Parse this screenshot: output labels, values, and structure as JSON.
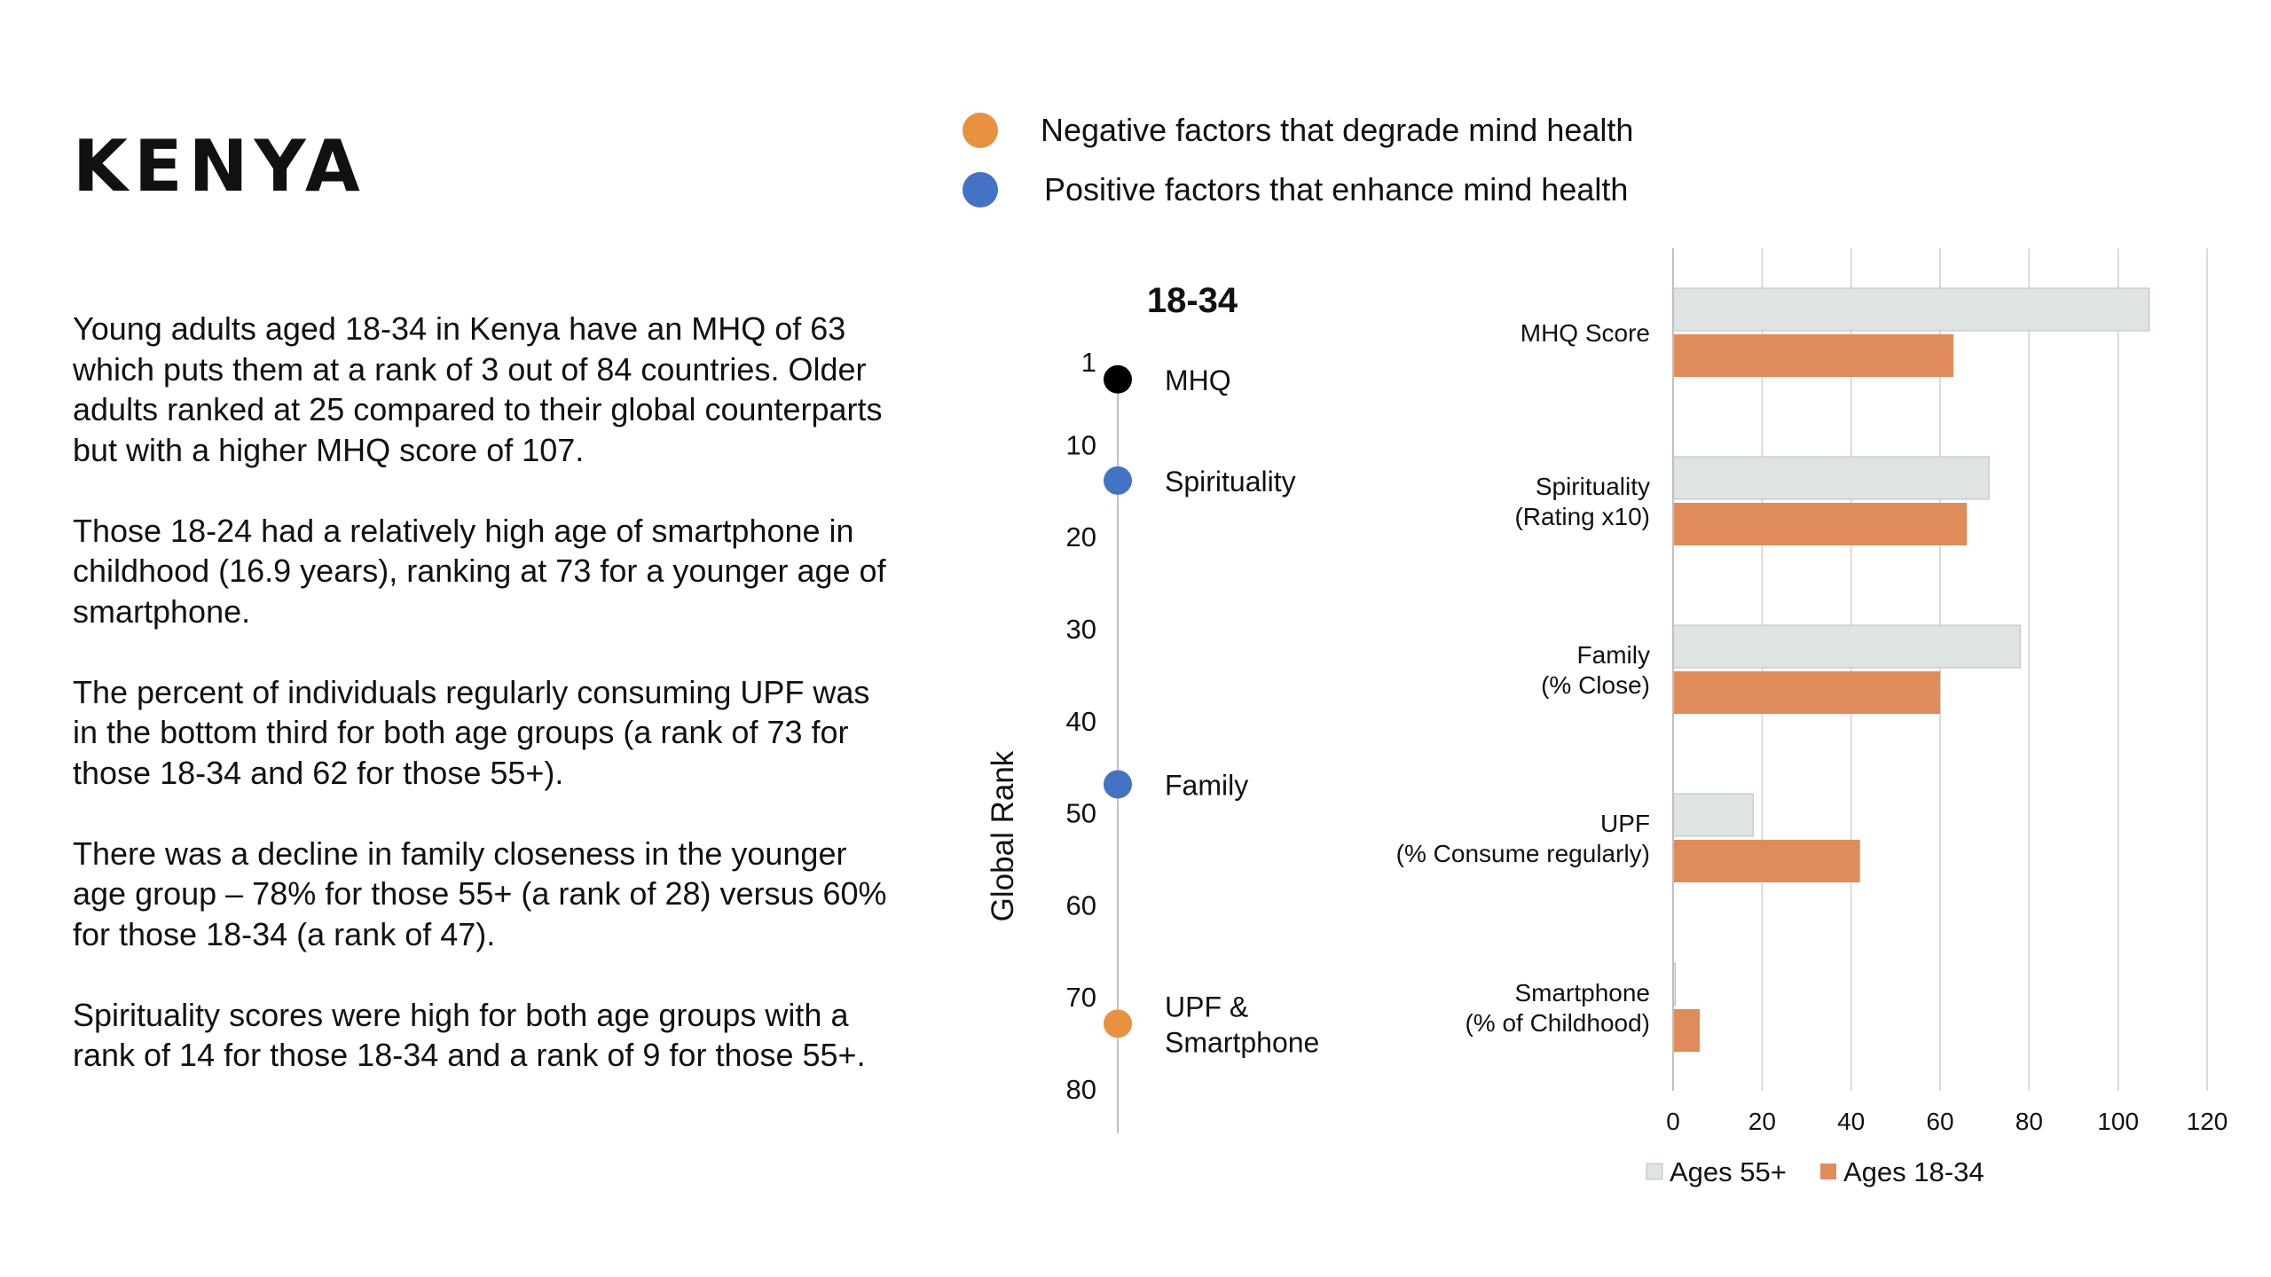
{
  "title": "KENYA",
  "paragraphs": [
    "Young adults aged 18-34 in Kenya have an MHQ of 63 which puts them at a rank of 3 out of 84 countries. Older adults ranked at 25 compared to their global counterparts but with a higher MHQ score of 107.",
    "Those 18-24 had a relatively high age of smartphone in childhood (16.9 years), ranking at 73 for a younger age of smartphone.",
    "The percent of individuals regularly consuming UPF was in the bottom third for both age groups (a rank of 73 for those 18-34 and 62 for those 55+).",
    "There was a decline in family closeness in the younger age group – 78% for those 55+ (a rank of 28) versus 60% for those 18-34 (a rank of 47).",
    "Spirituality scores were high for both age groups with a rank of 14 for those 18-34 and a rank of 9 for those 55+."
  ],
  "legend": {
    "negative": {
      "label": "Negative factors that degrade mind health",
      "color": "#E8913E"
    },
    "positive": {
      "label": "Positive factors that enhance mind health",
      "color": "#4472C4"
    }
  },
  "chart_data": [
    {
      "type": "scatter",
      "title": "18-34",
      "ylabel": "Global Rank",
      "ylim": [
        1,
        84
      ],
      "y_inverted": true,
      "yticks": [
        1,
        10,
        20,
        30,
        40,
        50,
        60,
        70,
        80
      ],
      "points": [
        {
          "label": "MHQ",
          "rank": 3,
          "color": "#000000"
        },
        {
          "label": "Spirituality",
          "rank": 14,
          "color": "#4472C4"
        },
        {
          "label": "Family",
          "rank": 47,
          "color": "#4472C4"
        },
        {
          "label": "UPF & Smartphone",
          "label_lines": [
            "UPF &",
            "Smartphone"
          ],
          "rank": 73,
          "color": "#E8913E"
        }
      ]
    },
    {
      "type": "bar",
      "orientation": "horizontal",
      "categories": [
        [
          "MHQ Score"
        ],
        [
          "Spirituality",
          "(Rating x10)"
        ],
        [
          "Family",
          "(% Close)"
        ],
        [
          "UPF",
          "(% Consume regularly)"
        ],
        [
          "Smartphone",
          "(% of Childhood)"
        ]
      ],
      "series": [
        {
          "name": "Ages 55+",
          "color": "#DEE3E3",
          "values": [
            107,
            71,
            78,
            18,
            0.5
          ]
        },
        {
          "name": "Ages 18-34",
          "color": "#E08B5A",
          "values": [
            63,
            66,
            60,
            42,
            6
          ]
        }
      ],
      "xlim": [
        0,
        120
      ],
      "xticks": [
        0,
        20,
        40,
        60,
        80,
        100,
        120
      ],
      "grid": true,
      "legend_position": "bottom"
    }
  ]
}
